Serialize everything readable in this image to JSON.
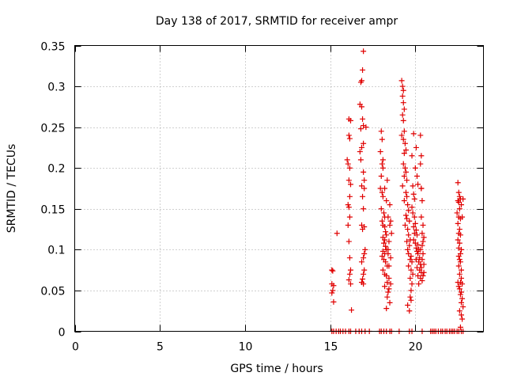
{
  "chart_data": {
    "type": "scatter",
    "title": "Day 138 of 2017, SRMTID for receiver ampr",
    "xlabel": "GPS time / hours",
    "ylabel": "SRMTID / TECUs",
    "xlim": [
      0,
      24
    ],
    "ylim": [
      0,
      0.35
    ],
    "xticks": [
      0,
      5,
      10,
      15,
      20
    ],
    "xtick_labels": [
      "0",
      "5",
      "10",
      "15",
      "20"
    ],
    "yticks": [
      0,
      0.05,
      0.1,
      0.15,
      0.2,
      0.25,
      0.3,
      0.35
    ],
    "ytick_labels": [
      "0",
      "0.05",
      "0.1",
      "0.15",
      "0.2",
      "0.25",
      "0.3",
      "0.35"
    ],
    "grid": true,
    "marker": "+",
    "color": "#e00000",
    "series": [
      {
        "name": "SRMTID",
        "points": [
          [
            15.1,
            0
          ],
          [
            15.2,
            0
          ],
          [
            15.35,
            0
          ],
          [
            15.5,
            0
          ],
          [
            15.6,
            0
          ],
          [
            15.75,
            0
          ],
          [
            15.9,
            0
          ],
          [
            16.1,
            0
          ],
          [
            16.2,
            0
          ],
          [
            16.5,
            0
          ],
          [
            16.7,
            0
          ],
          [
            16.85,
            0
          ],
          [
            17.05,
            0
          ],
          [
            17.3,
            0
          ],
          [
            17.9,
            0
          ],
          [
            18.0,
            0
          ],
          [
            18.15,
            0
          ],
          [
            18.3,
            0
          ],
          [
            18.5,
            0
          ],
          [
            18.6,
            0
          ],
          [
            19.05,
            0
          ],
          [
            19.65,
            0
          ],
          [
            19.8,
            0
          ],
          [
            20.4,
            0
          ],
          [
            20.9,
            0
          ],
          [
            21.0,
            0
          ],
          [
            21.1,
            0
          ],
          [
            21.2,
            0
          ],
          [
            21.35,
            0
          ],
          [
            21.5,
            0
          ],
          [
            21.6,
            0
          ],
          [
            21.75,
            0
          ],
          [
            21.85,
            0
          ],
          [
            22.0,
            0
          ],
          [
            22.1,
            0
          ],
          [
            22.2,
            0
          ],
          [
            22.3,
            0
          ],
          [
            22.45,
            0
          ],
          [
            22.55,
            0
          ],
          [
            22.7,
            0
          ],
          [
            22.8,
            0
          ],
          [
            15.1,
            0.075
          ],
          [
            15.15,
            0.074
          ],
          [
            15.1,
            0.058
          ],
          [
            15.2,
            0.056
          ],
          [
            15.1,
            0.047
          ],
          [
            15.15,
            0.05
          ],
          [
            15.2,
            0.036
          ],
          [
            15.4,
            0.12
          ],
          [
            16.0,
            0.21
          ],
          [
            16.05,
            0.205
          ],
          [
            16.1,
            0.24
          ],
          [
            16.15,
            0.236
          ],
          [
            16.1,
            0.26
          ],
          [
            16.2,
            0.258
          ],
          [
            16.1,
            0.185
          ],
          [
            16.15,
            0.165
          ],
          [
            16.05,
            0.155
          ],
          [
            16.1,
            0.152
          ],
          [
            16.15,
            0.14
          ],
          [
            16.05,
            0.13
          ],
          [
            16.1,
            0.11
          ],
          [
            16.15,
            0.09
          ],
          [
            16.2,
            0.075
          ],
          [
            16.15,
            0.07
          ],
          [
            16.1,
            0.063
          ],
          [
            16.2,
            0.058
          ],
          [
            16.25,
            0.026
          ],
          [
            16.2,
            0.18
          ],
          [
            16.15,
            0.2
          ],
          [
            16.8,
            0.305
          ],
          [
            16.85,
            0.307
          ],
          [
            16.9,
            0.32
          ],
          [
            16.95,
            0.343
          ],
          [
            16.75,
            0.278
          ],
          [
            16.85,
            0.275
          ],
          [
            16.9,
            0.26
          ],
          [
            16.95,
            0.252
          ],
          [
            16.8,
            0.248
          ],
          [
            16.95,
            0.23
          ],
          [
            16.85,
            0.225
          ],
          [
            16.75,
            0.22
          ],
          [
            16.95,
            0.195
          ],
          [
            17.0,
            0.185
          ],
          [
            16.85,
            0.178
          ],
          [
            17.0,
            0.175
          ],
          [
            16.9,
            0.165
          ],
          [
            16.95,
            0.15
          ],
          [
            16.85,
            0.13
          ],
          [
            17.0,
            0.128
          ],
          [
            16.9,
            0.125
          ],
          [
            17.05,
            0.1
          ],
          [
            17.0,
            0.095
          ],
          [
            16.95,
            0.09
          ],
          [
            16.85,
            0.085
          ],
          [
            17.0,
            0.075
          ],
          [
            16.95,
            0.07
          ],
          [
            16.9,
            0.064
          ],
          [
            16.85,
            0.06
          ],
          [
            16.95,
            0.058
          ],
          [
            16.8,
            0.21
          ],
          [
            17.1,
            0.25
          ],
          [
            18.0,
            0.245
          ],
          [
            18.05,
            0.235
          ],
          [
            17.95,
            0.22
          ],
          [
            18.05,
            0.205
          ],
          [
            18.1,
            0.2
          ],
          [
            18.0,
            0.19
          ],
          [
            17.95,
            0.175
          ],
          [
            18.05,
            0.17
          ],
          [
            18.1,
            0.165
          ],
          [
            18.0,
            0.15
          ],
          [
            18.15,
            0.145
          ],
          [
            18.2,
            0.14
          ],
          [
            18.05,
            0.135
          ],
          [
            18.1,
            0.13
          ],
          [
            18.2,
            0.128
          ],
          [
            18.25,
            0.122
          ],
          [
            18.3,
            0.118
          ],
          [
            18.1,
            0.115
          ],
          [
            18.2,
            0.112
          ],
          [
            18.15,
            0.108
          ],
          [
            18.25,
            0.104
          ],
          [
            18.3,
            0.1
          ],
          [
            18.1,
            0.098
          ],
          [
            18.2,
            0.095
          ],
          [
            18.05,
            0.092
          ],
          [
            18.15,
            0.088
          ],
          [
            18.25,
            0.085
          ],
          [
            18.35,
            0.08
          ],
          [
            18.1,
            0.075
          ],
          [
            18.2,
            0.07
          ],
          [
            18.3,
            0.068
          ],
          [
            18.45,
            0.065
          ],
          [
            18.35,
            0.06
          ],
          [
            18.2,
            0.055
          ],
          [
            18.4,
            0.048
          ],
          [
            18.35,
            0.042
          ],
          [
            18.5,
            0.035
          ],
          [
            18.3,
            0.028
          ],
          [
            18.4,
            0.095
          ],
          [
            18.45,
            0.11
          ],
          [
            18.5,
            0.13
          ],
          [
            18.55,
            0.135
          ],
          [
            18.4,
            0.14
          ],
          [
            18.5,
            0.155
          ],
          [
            18.6,
            0.12
          ],
          [
            18.55,
            0.09
          ],
          [
            18.45,
            0.08
          ],
          [
            18.3,
            0.16
          ],
          [
            18.2,
            0.175
          ],
          [
            18.1,
            0.21
          ],
          [
            18.35,
            0.185
          ],
          [
            18.4,
            0.1
          ],
          [
            18.55,
            0.058
          ],
          [
            18.45,
            0.052
          ],
          [
            19.2,
            0.307
          ],
          [
            19.25,
            0.3
          ],
          [
            19.3,
            0.295
          ],
          [
            19.25,
            0.288
          ],
          [
            19.3,
            0.28
          ],
          [
            19.35,
            0.272
          ],
          [
            19.25,
            0.265
          ],
          [
            19.3,
            0.258
          ],
          [
            19.35,
            0.245
          ],
          [
            19.2,
            0.24
          ],
          [
            19.3,
            0.235
          ],
          [
            19.4,
            0.23
          ],
          [
            19.45,
            0.222
          ],
          [
            19.35,
            0.218
          ],
          [
            19.3,
            0.205
          ],
          [
            19.4,
            0.2
          ],
          [
            19.45,
            0.195
          ],
          [
            19.35,
            0.19
          ],
          [
            19.5,
            0.185
          ],
          [
            19.25,
            0.178
          ],
          [
            19.45,
            0.17
          ],
          [
            19.5,
            0.165
          ],
          [
            19.35,
            0.16
          ],
          [
            19.55,
            0.155
          ],
          [
            19.6,
            0.148
          ],
          [
            19.45,
            0.142
          ],
          [
            19.5,
            0.138
          ],
          [
            19.65,
            0.135
          ],
          [
            19.4,
            0.13
          ],
          [
            19.55,
            0.125
          ],
          [
            19.6,
            0.118
          ],
          [
            19.7,
            0.112
          ],
          [
            19.5,
            0.11
          ],
          [
            19.65,
            0.105
          ],
          [
            19.55,
            0.1
          ],
          [
            19.6,
            0.095
          ],
          [
            19.75,
            0.092
          ],
          [
            19.7,
            0.088
          ],
          [
            19.8,
            0.085
          ],
          [
            19.6,
            0.08
          ],
          [
            19.75,
            0.075
          ],
          [
            19.85,
            0.07
          ],
          [
            19.7,
            0.065
          ],
          [
            19.8,
            0.058
          ],
          [
            19.75,
            0.05
          ],
          [
            19.7,
            0.042
          ],
          [
            19.65,
            0.025
          ],
          [
            19.8,
            0.215
          ],
          [
            19.85,
            0.178
          ],
          [
            19.9,
            0.168
          ],
          [
            19.95,
            0.162
          ],
          [
            19.8,
            0.152
          ],
          [
            19.85,
            0.145
          ],
          [
            19.95,
            0.14
          ],
          [
            20.0,
            0.132
          ],
          [
            19.9,
            0.128
          ],
          [
            20.05,
            0.124
          ],
          [
            19.95,
            0.12
          ],
          [
            20.1,
            0.118
          ],
          [
            19.9,
            0.112
          ],
          [
            20.0,
            0.108
          ],
          [
            20.15,
            0.106
          ],
          [
            20.05,
            0.102
          ],
          [
            20.2,
            0.1
          ],
          [
            20.1,
            0.098
          ],
          [
            20.15,
            0.095
          ],
          [
            20.25,
            0.09
          ],
          [
            20.05,
            0.088
          ],
          [
            20.2,
            0.085
          ],
          [
            20.3,
            0.082
          ],
          [
            20.1,
            0.078
          ],
          [
            20.25,
            0.075
          ],
          [
            20.35,
            0.072
          ],
          [
            20.15,
            0.068
          ],
          [
            20.3,
            0.065
          ],
          [
            20.4,
            0.062
          ],
          [
            20.2,
            0.058
          ],
          [
            19.9,
            0.242
          ],
          [
            20.05,
            0.225
          ],
          [
            20.0,
            0.2
          ],
          [
            20.1,
            0.19
          ],
          [
            20.15,
            0.18
          ],
          [
            20.3,
            0.24
          ],
          [
            20.35,
            0.215
          ],
          [
            20.3,
            0.205
          ],
          [
            20.35,
            0.175
          ],
          [
            20.4,
            0.16
          ],
          [
            20.35,
            0.14
          ],
          [
            20.45,
            0.13
          ],
          [
            20.4,
            0.12
          ],
          [
            20.5,
            0.115
          ],
          [
            20.45,
            0.11
          ],
          [
            20.4,
            0.105
          ],
          [
            20.3,
            0.1
          ],
          [
            20.45,
            0.095
          ],
          [
            20.4,
            0.088
          ],
          [
            20.5,
            0.082
          ],
          [
            20.35,
            0.078
          ],
          [
            20.5,
            0.072
          ],
          [
            20.45,
            0.068
          ],
          [
            20.35,
            0.175
          ],
          [
            19.55,
            0.032
          ],
          [
            19.75,
            0.038
          ],
          [
            22.5,
            0.182
          ],
          [
            22.55,
            0.17
          ],
          [
            22.6,
            0.165
          ],
          [
            22.65,
            0.162
          ],
          [
            22.5,
            0.16
          ],
          [
            22.55,
            0.158
          ],
          [
            22.7,
            0.155
          ],
          [
            22.6,
            0.15
          ],
          [
            22.45,
            0.145
          ],
          [
            22.55,
            0.14
          ],
          [
            22.65,
            0.138
          ],
          [
            22.5,
            0.132
          ],
          [
            22.6,
            0.125
          ],
          [
            22.55,
            0.12
          ],
          [
            22.65,
            0.118
          ],
          [
            22.5,
            0.112
          ],
          [
            22.6,
            0.108
          ],
          [
            22.55,
            0.102
          ],
          [
            22.7,
            0.1
          ],
          [
            22.65,
            0.095
          ],
          [
            22.55,
            0.092
          ],
          [
            22.6,
            0.088
          ],
          [
            22.65,
            0.085
          ],
          [
            22.55,
            0.08
          ],
          [
            22.7,
            0.075
          ],
          [
            22.6,
            0.07
          ],
          [
            22.7,
            0.065
          ],
          [
            22.65,
            0.06
          ],
          [
            22.75,
            0.058
          ],
          [
            22.6,
            0.052
          ],
          [
            22.7,
            0.048
          ],
          [
            22.65,
            0.045
          ],
          [
            22.75,
            0.04
          ],
          [
            22.7,
            0.035
          ],
          [
            22.8,
            0.03
          ],
          [
            22.6,
            0.025
          ],
          [
            22.7,
            0.02
          ],
          [
            22.75,
            0.015
          ],
          [
            22.65,
            0.005
          ],
          [
            22.8,
            0.162
          ],
          [
            22.75,
            0.14
          ],
          [
            22.5,
            0.06
          ],
          [
            22.55,
            0.055
          ]
        ]
      }
    ]
  }
}
